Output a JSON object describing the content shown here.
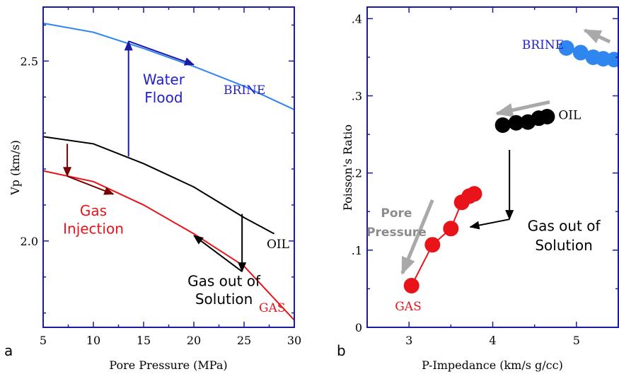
{
  "colors": {
    "axis": "#1a1aa6",
    "brine": "#2f86ee",
    "brine_text": "#2222c8",
    "oil": "#000000",
    "gas": "#e8141a",
    "gas_arrow": "#7a0000",
    "gray_arrow": "#a9a9a9",
    "pore_text": "#8c8c8c"
  },
  "chart_data": [
    {
      "type": "line",
      "panel_label": "a",
      "xlabel": "Pore Pressure (MPa)",
      "ylabel": "Vp (km/s)",
      "xlim": [
        5,
        30
      ],
      "ylim": [
        1.76,
        2.65
      ],
      "xticks": [
        5,
        10,
        15,
        20,
        25,
        30
      ],
      "xtick_labels": [
        "5",
        "10",
        "15",
        "20",
        "25",
        "30"
      ],
      "yticks": [
        2.0,
        2.5
      ],
      "ytick_labels": [
        "2.0",
        "2.5"
      ],
      "series": [
        {
          "name": "BRINE",
          "color": "#2f86ee",
          "x": [
            5,
            10,
            15,
            20,
            25,
            30
          ],
          "y": [
            2.605,
            2.58,
            2.535,
            2.485,
            2.43,
            2.365
          ]
        },
        {
          "name": "OIL",
          "color": "#000000",
          "x": [
            5,
            10,
            15,
            20,
            25,
            28
          ],
          "y": [
            2.29,
            2.27,
            2.215,
            2.15,
            2.065,
            2.02
          ]
        },
        {
          "name": "GAS",
          "color": "#e8141a",
          "x": [
            5,
            10,
            15,
            20,
            25,
            30
          ],
          "y": [
            2.195,
            2.165,
            2.1,
            2.02,
            1.93,
            1.78
          ]
        }
      ],
      "annotations": [
        {
          "text": "Water",
          "x": 17,
          "y": 2.435
        },
        {
          "text": "Flood",
          "x": 17,
          "y": 2.385
        },
        {
          "text": "Gas",
          "x": 10,
          "y": 2.07
        },
        {
          "text": "Injection",
          "x": 10,
          "y": 2.02
        },
        {
          "text": "Gas out of",
          "x": 23,
          "y": 1.875
        },
        {
          "text": "Solution",
          "x": 23,
          "y": 1.825
        }
      ],
      "arrows": [
        {
          "color": "#1a1aa6",
          "from": [
            13.5,
            2.235
          ],
          "to": [
            13.5,
            2.555
          ]
        },
        {
          "color": "#1a1aa6",
          "from": [
            13.5,
            2.555
          ],
          "to": [
            20,
            2.49
          ]
        },
        {
          "color": "#000000",
          "from": [
            24.8,
            2.075
          ],
          "to": [
            24.8,
            1.915
          ]
        },
        {
          "color": "#000000",
          "from": [
            24.8,
            1.915
          ],
          "to": [
            20,
            2.015
          ]
        },
        {
          "color": "#7a0000",
          "from": [
            7.4,
            2.27
          ],
          "to": [
            7.4,
            2.18
          ]
        },
        {
          "color": "#7a0000",
          "from": [
            7.4,
            2.18
          ],
          "to": [
            12,
            2.13
          ]
        }
      ]
    },
    {
      "type": "scatter",
      "panel_label": "b",
      "xlabel": "P-Impedance (km/s g/cc)",
      "ylabel": "Poisson's Ratio",
      "xlim": [
        2.5,
        5.5
      ],
      "ylim": [
        0,
        0.415
      ],
      "xticks": [
        3,
        4,
        5
      ],
      "xtick_labels": [
        "3",
        "4",
        "5"
      ],
      "yticks": [
        0,
        0.1,
        0.2,
        0.3,
        0.4
      ],
      "ytick_labels": [
        "0",
        ".1",
        ".2",
        ".3",
        ".4"
      ],
      "series": [
        {
          "name": "BRINE",
          "color": "#2f86ee",
          "x": [
            4.88,
            5.05,
            5.2,
            5.32,
            5.45
          ],
          "y": [
            0.362,
            0.356,
            0.35,
            0.348,
            0.347
          ]
        },
        {
          "name": "OIL",
          "color": "#000000",
          "x": [
            4.12,
            4.28,
            4.42,
            4.55,
            4.65
          ],
          "y": [
            0.262,
            0.265,
            0.266,
            0.271,
            0.273
          ]
        },
        {
          "name": "GAS",
          "color": "#e8141a",
          "x": [
            3.03,
            3.28,
            3.5,
            3.63,
            3.72,
            3.78
          ],
          "y": [
            0.054,
            0.107,
            0.128,
            0.162,
            0.17,
            0.173
          ],
          "connected": true
        }
      ],
      "annotations": [
        {
          "text": "BRINE",
          "x": 4.6,
          "y": 0.361
        },
        {
          "text": "OIL",
          "x": 4.92,
          "y": 0.27
        },
        {
          "text": "Gas out of",
          "x": 4.85,
          "y": 0.125
        },
        {
          "text": "Solution",
          "x": 4.85,
          "y": 0.1
        },
        {
          "text": "Pore",
          "x": 2.85,
          "y": 0.143
        },
        {
          "text": "Pressure",
          "x": 2.85,
          "y": 0.118
        },
        {
          "text": "GAS",
          "x": 2.99,
          "y": 0.022
        }
      ],
      "arrows": [
        {
          "color": "#000000",
          "from": [
            4.2,
            0.23
          ],
          "to": [
            4.2,
            0.14
          ]
        },
        {
          "color": "#000000",
          "from": [
            4.2,
            0.14
          ],
          "to": [
            3.73,
            0.13
          ]
        },
        {
          "color": "#a9a9a9",
          "from": [
            4.68,
            0.292
          ],
          "to": [
            4.05,
            0.277
          ]
        },
        {
          "color": "#a9a9a9",
          "from": [
            5.4,
            0.37
          ],
          "to": [
            5.1,
            0.385
          ]
        },
        {
          "color": "#a9a9a9",
          "from": [
            3.28,
            0.165
          ],
          "to": [
            2.92,
            0.07
          ]
        }
      ]
    }
  ]
}
